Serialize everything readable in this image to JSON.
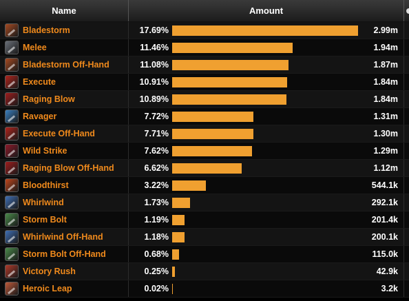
{
  "header": {
    "name_label": "Name",
    "amount_label": "Amount"
  },
  "colors": {
    "name_text": "#f08a1c",
    "bar": "#f0a030"
  },
  "rows": [
    {
      "name": "Bladestorm",
      "percent": "17.69%",
      "amount": "2.99m",
      "fraction": 17.69,
      "icon": "bladestorm-icon",
      "icon_color": "#a64a22"
    },
    {
      "name": "Melee",
      "percent": "11.46%",
      "amount": "1.94m",
      "fraction": 11.46,
      "icon": "melee-sword-icon",
      "icon_color": "#6a6f78"
    },
    {
      "name": "Bladestorm Off-Hand",
      "percent": "11.08%",
      "amount": "1.87m",
      "fraction": 11.08,
      "icon": "bladestorm-icon",
      "icon_color": "#a64a22"
    },
    {
      "name": "Execute",
      "percent": "10.91%",
      "amount": "1.84m",
      "fraction": 10.91,
      "icon": "execute-icon",
      "icon_color": "#b0241c"
    },
    {
      "name": "Raging Blow",
      "percent": "10.89%",
      "amount": "1.84m",
      "fraction": 10.89,
      "icon": "raging-blow-icon",
      "icon_color": "#9e1c1c"
    },
    {
      "name": "Ravager",
      "percent": "7.72%",
      "amount": "1.31m",
      "fraction": 7.72,
      "icon": "ravager-icon",
      "icon_color": "#3a7fc0"
    },
    {
      "name": "Execute Off-Hand",
      "percent": "7.71%",
      "amount": "1.30m",
      "fraction": 7.71,
      "icon": "execute-icon",
      "icon_color": "#b0241c"
    },
    {
      "name": "Wild Strike",
      "percent": "7.62%",
      "amount": "1.29m",
      "fraction": 7.62,
      "icon": "wild-strike-icon",
      "icon_color": "#8c1a2a"
    },
    {
      "name": "Raging Blow Off-Hand",
      "percent": "6.62%",
      "amount": "1.12m",
      "fraction": 6.62,
      "icon": "raging-blow-icon",
      "icon_color": "#9e1c1c"
    },
    {
      "name": "Bloodthirst",
      "percent": "3.22%",
      "amount": "544.1k",
      "fraction": 3.22,
      "icon": "bloodthirst-icon",
      "icon_color": "#c0461c"
    },
    {
      "name": "Whirlwind",
      "percent": "1.73%",
      "amount": "292.1k",
      "fraction": 1.73,
      "icon": "whirlwind-icon",
      "icon_color": "#3f6fb5"
    },
    {
      "name": "Storm Bolt",
      "percent": "1.19%",
      "amount": "201.4k",
      "fraction": 1.19,
      "icon": "storm-bolt-icon",
      "icon_color": "#4a8a4a"
    },
    {
      "name": "Whirlwind Off-Hand",
      "percent": "1.18%",
      "amount": "200.1k",
      "fraction": 1.18,
      "icon": "whirlwind-icon",
      "icon_color": "#3f6fb5"
    },
    {
      "name": "Storm Bolt Off-Hand",
      "percent": "0.68%",
      "amount": "115.0k",
      "fraction": 0.68,
      "icon": "storm-bolt-icon",
      "icon_color": "#4a8a4a"
    },
    {
      "name": "Victory Rush",
      "percent": "0.25%",
      "amount": "42.9k",
      "fraction": 0.25,
      "icon": "victory-rush-icon",
      "icon_color": "#b03a2a"
    },
    {
      "name": "Heroic Leap",
      "percent": "0.02%",
      "amount": "3.2k",
      "fraction": 0.02,
      "icon": "heroic-leap-icon",
      "icon_color": "#c05a3a"
    }
  ]
}
